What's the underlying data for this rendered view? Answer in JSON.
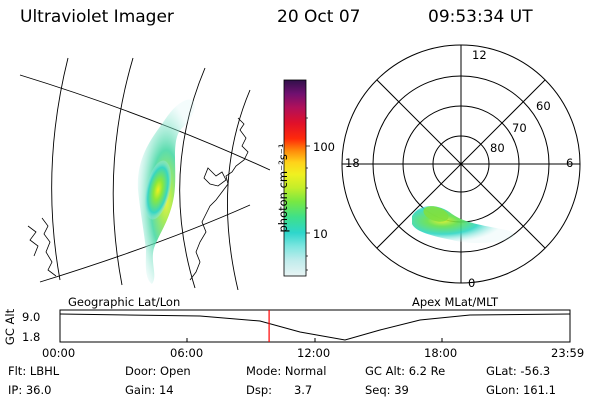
{
  "header": {
    "title": "Ultraviolet Imager",
    "date": "20 Oct 07",
    "time": "09:53:34 UT"
  },
  "geo_panel": {
    "label": "Geographic Lat/Lon"
  },
  "colorbar": {
    "unit_label": "photon cm⁻²s⁻¹",
    "tick_100": "100",
    "tick_10": "10",
    "colors": [
      "#e8f4f4",
      "#c0ecec",
      "#7fe6e0",
      "#2ed6cc",
      "#3ee08a",
      "#78e842",
      "#c4ee2a",
      "#f0f020",
      "#ffd21a",
      "#ff8a0a",
      "#ff2a0a",
      "#e0102a",
      "#b0105a",
      "#701070",
      "#30104a"
    ]
  },
  "polar_panel": {
    "label": "Apex  MLat/MLT",
    "mlt_labels": {
      "top": "12",
      "bottom": "0",
      "left": "18",
      "right": "6"
    },
    "lat_labels": [
      "60",
      "70",
      "80"
    ]
  },
  "timeline": {
    "axis_title": "GC Alt",
    "y_ticks": [
      "9.0",
      "1.8"
    ],
    "x_ticks": [
      "00:00",
      "06:00",
      "12:00",
      "18:00",
      "23:59"
    ],
    "current_time_fraction": 0.41,
    "accent_color": "#ff0000"
  },
  "info": {
    "rows": [
      [
        {
          "id": "flt",
          "text": "Flt: LBHL"
        },
        {
          "id": "door",
          "text": "Door: Open"
        },
        {
          "id": "mode",
          "text": "Mode:  Normal"
        },
        {
          "id": "gcalt",
          "text": "GC Alt: 6.2 Re"
        },
        {
          "id": "glat",
          "text": "GLat: -56.3"
        }
      ],
      [
        {
          "id": "ip",
          "text": "IP: 36.0"
        },
        {
          "id": "gain",
          "text": "Gain: 14"
        },
        {
          "id": "dsp",
          "text": "Dsp:      3.7"
        },
        {
          "id": "seq",
          "text": "Seq: 39"
        },
        {
          "id": "glon",
          "text": "GLon: 161.1"
        }
      ]
    ]
  }
}
